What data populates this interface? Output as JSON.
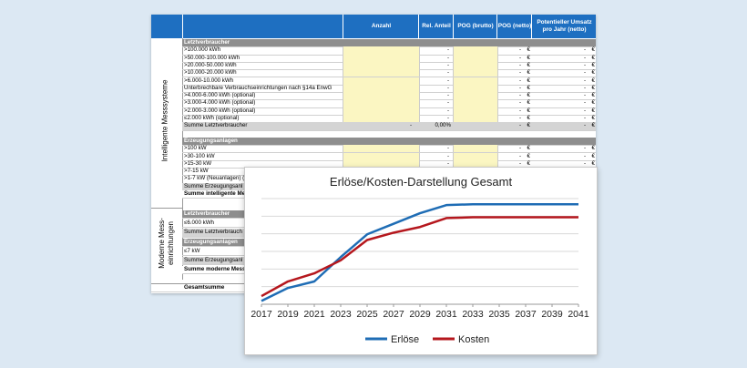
{
  "sheet": {
    "headers": [
      "Anzahl",
      "Rel. Anteil",
      "POG (brutto)",
      "POG (netto)",
      "Potentieller Umsatz pro Jahr (netto)"
    ],
    "group1_label": "Intelligente Messsysteme",
    "group2_label": "Moderne Mess-einrichtungen",
    "rows1": [
      {
        "label": "Letztverbraucher",
        "kind": "section"
      },
      {
        "label": ">100.000 kWh",
        "kind": "data"
      },
      {
        "label": ">50.000-100.000 kWh",
        "kind": "data"
      },
      {
        "label": ">20.000-50.000 kWh",
        "kind": "data"
      },
      {
        "label": ">10.000-20.000 kWh",
        "kind": "data"
      },
      {
        "label": ">6.000-10.000 kWh",
        "kind": "data"
      },
      {
        "label": "Unterbrechbare Verbrauchseinrichtungen nach §14a EnwG",
        "kind": "data"
      },
      {
        "label": ">4.000-6.000 kWh (optional)",
        "kind": "data"
      },
      {
        "label": ">3.000-4.000 kWh (optional)",
        "kind": "data"
      },
      {
        "label": ">2.000-3.000 kWh (optional)",
        "kind": "data"
      },
      {
        "label": "≤2.000 kWh (optional)",
        "kind": "data"
      },
      {
        "label": "Summe Letztverbraucher",
        "kind": "sum",
        "anzahl": "-",
        "anteil": "0,00%"
      },
      {
        "label": "",
        "kind": "blank"
      },
      {
        "label": "Erzeugungsanlagen",
        "kind": "section"
      },
      {
        "label": ">100 kW",
        "kind": "data"
      },
      {
        "label": ">30-100 kW",
        "kind": "data"
      },
      {
        "label": ">15-30 kW",
        "kind": "data"
      },
      {
        "label": ">7-15 kW",
        "kind": "data"
      },
      {
        "label": ">1-7 kW (Neuanlagen) (",
        "kind": "data"
      },
      {
        "label": "Summe Erzeugungsanl",
        "kind": "sum"
      },
      {
        "label": "Summe intelligente Me",
        "kind": "sumbold"
      }
    ],
    "rows2": [
      {
        "label": "Letztverbraucher",
        "kind": "section"
      },
      {
        "label": "≤6.000 kWh",
        "kind": "data"
      },
      {
        "label": "Summe Letztverbrauch",
        "kind": "sum"
      },
      {
        "label": "Erzeugungsanlagen",
        "kind": "section"
      },
      {
        "label": "≤7 kW",
        "kind": "data"
      },
      {
        "label": "Summe Erzeugungsanl",
        "kind": "sum"
      },
      {
        "label": "Summe moderne Mess",
        "kind": "sumbold"
      }
    ],
    "total_label": "Gesamtsumme",
    "dash": "-",
    "euro": "€"
  },
  "chart_data": {
    "type": "line",
    "title": "Erlöse/Kosten-Darstellung  Gesamt",
    "x": [
      "2017",
      "2019",
      "2021",
      "2023",
      "2025",
      "2027",
      "2029",
      "2031",
      "2033",
      "2035",
      "2037",
      "2039",
      "2041"
    ],
    "series": [
      {
        "name": "Erlöse",
        "color": "#1f6db5",
        "values": [
          4,
          20,
          28,
          58,
          86,
          99,
          112,
          122,
          123,
          123,
          123,
          123,
          123
        ]
      },
      {
        "name": "Kosten",
        "color": "#b5171d",
        "values": [
          10,
          28,
          38,
          54,
          79,
          88,
          95,
          106,
          107,
          107,
          107,
          107,
          107
        ]
      }
    ],
    "ylim": [
      0,
      130
    ],
    "grid": true,
    "legend": "bottom"
  }
}
